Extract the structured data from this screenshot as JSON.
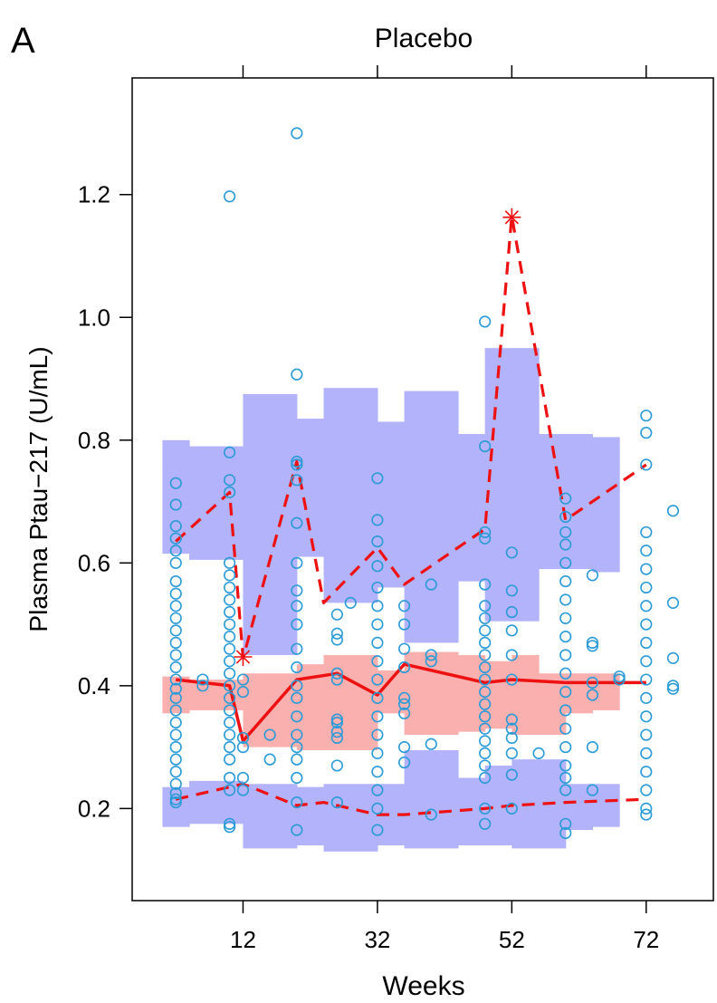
{
  "panel_label": "A",
  "chart_data": {
    "type": "scatter",
    "title": "Placebo",
    "xlabel": "Weeks",
    "ylabel": "Plasma Ptau−217 (U/mL)",
    "xlim": [
      -4.5,
      82
    ],
    "ylim": [
      0.05,
      1.39
    ],
    "x_ticks": [
      12,
      32,
      52,
      72
    ],
    "y_ticks": [
      0.2,
      0.4,
      0.6,
      0.8,
      1.0,
      1.2
    ],
    "y_tick_labels": [
      "0.2",
      "0.4",
      "0.6",
      "0.8",
      "1.0",
      "1.2"
    ],
    "grid": false,
    "legend": "none",
    "colors": {
      "points": "#2b9bd8",
      "prediction_interval": "#b3b3fb",
      "median_interval": "#fbb0b0",
      "overlap": "#c8a0d0",
      "observed_lines": "#ee1111",
      "outlier_marker": "#ee1111"
    },
    "prediction_bands": {
      "x_edges": [
        0,
        4,
        8,
        12,
        16,
        20,
        24,
        28,
        32,
        36,
        40,
        44,
        48,
        52,
        56,
        60,
        64,
        68
      ],
      "p5_low": [
        0.17,
        0.175,
        0.175,
        0.135,
        0.135,
        0.14,
        0.13,
        0.13,
        0.14,
        0.135,
        0.135,
        0.14,
        0.14,
        0.135,
        0.135,
        0.165,
        0.17
      ],
      "p5_high": [
        0.235,
        0.245,
        0.245,
        0.24,
        0.24,
        0.235,
        0.24,
        0.24,
        0.24,
        0.295,
        0.295,
        0.25,
        0.27,
        0.28,
        0.28,
        0.24,
        0.24
      ],
      "med_low": [
        0.355,
        0.36,
        0.36,
        0.3,
        0.3,
        0.295,
        0.295,
        0.295,
        0.355,
        0.32,
        0.32,
        0.325,
        0.33,
        0.32,
        0.32,
        0.355,
        0.36
      ],
      "med_high": [
        0.415,
        0.41,
        0.41,
        0.42,
        0.42,
        0.435,
        0.45,
        0.45,
        0.425,
        0.455,
        0.455,
        0.45,
        0.44,
        0.45,
        0.42,
        0.42,
        0.42
      ],
      "p95_low": [
        0.615,
        0.605,
        0.605,
        0.45,
        0.45,
        0.61,
        0.535,
        0.535,
        0.56,
        0.47,
        0.47,
        0.57,
        0.505,
        0.505,
        0.59,
        0.59,
        0.585
      ],
      "p95_high": [
        0.8,
        0.79,
        0.79,
        0.875,
        0.875,
        0.835,
        0.885,
        0.885,
        0.83,
        0.88,
        0.88,
        0.81,
        0.95,
        0.95,
        0.81,
        0.81,
        0.805
      ]
    },
    "series": [
      {
        "style": "solid",
        "x": [
          2,
          10,
          12,
          20,
          26,
          32,
          36,
          48,
          52,
          60,
          72
        ],
        "y": [
          0.41,
          0.4,
          0.31,
          0.41,
          0.42,
          0.385,
          0.435,
          0.405,
          0.41,
          0.405,
          0.405
        ]
      },
      {
        "style": "dashed",
        "x": [
          2,
          10,
          12,
          20,
          24,
          32,
          36,
          48,
          52,
          60,
          72
        ],
        "y": [
          0.635,
          0.715,
          0.445,
          0.765,
          0.535,
          0.625,
          0.565,
          0.655,
          1.165,
          0.67,
          0.76
        ]
      },
      {
        "style": "dashed",
        "x": [
          2,
          10,
          12,
          20,
          24,
          32,
          36,
          48,
          52,
          60,
          72
        ],
        "y": [
          0.215,
          0.235,
          0.24,
          0.205,
          0.21,
          0.19,
          0.19,
          0.2,
          0.205,
          0.21,
          0.215
        ]
      }
    ],
    "outlier_markers": [
      {
        "x": 12,
        "y": 0.447
      },
      {
        "x": 52,
        "y": 1.163
      }
    ],
    "observations": [
      {
        "x": 2,
        "y": [
          0.21,
          0.215,
          0.225,
          0.24,
          0.26,
          0.28,
          0.3,
          0.32,
          0.34,
          0.36,
          0.38,
          0.395,
          0.41,
          0.43,
          0.45,
          0.47,
          0.49,
          0.51,
          0.53,
          0.55,
          0.57,
          0.6,
          0.62,
          0.64,
          0.66,
          0.695,
          0.73
        ]
      },
      {
        "x": 6,
        "y": [
          0.4,
          0.41
        ]
      },
      {
        "x": 10,
        "y": [
          0.17,
          0.175,
          0.23,
          0.25,
          0.28,
          0.3,
          0.32,
          0.34,
          0.36,
          0.38,
          0.4,
          0.42,
          0.44,
          0.46,
          0.48,
          0.5,
          0.52,
          0.54,
          0.56,
          0.58,
          0.6,
          0.715,
          0.735,
          0.78,
          1.197
        ]
      },
      {
        "x": 12,
        "y": [
          0.23,
          0.25,
          0.3,
          0.315,
          0.39,
          0.41
        ]
      },
      {
        "x": 16,
        "y": [
          0.28,
          0.32
        ]
      },
      {
        "x": 20,
        "y": [
          0.165,
          0.21,
          0.25,
          0.28,
          0.3,
          0.32,
          0.35,
          0.38,
          0.4,
          0.43,
          0.46,
          0.5,
          0.53,
          0.555,
          0.6,
          0.665,
          0.735,
          0.76,
          0.765,
          0.907,
          1.3
        ]
      },
      {
        "x": 26,
        "y": [
          0.21,
          0.27,
          0.315,
          0.325,
          0.34,
          0.345,
          0.41,
          0.42,
          0.475,
          0.485,
          0.516
        ]
      },
      {
        "x": 28,
        "y": [
          0.535
        ]
      },
      {
        "x": 32,
        "y": [
          0.165,
          0.2,
          0.23,
          0.26,
          0.29,
          0.32,
          0.35,
          0.38,
          0.41,
          0.44,
          0.47,
          0.5,
          0.53,
          0.56,
          0.595,
          0.635,
          0.67,
          0.738
        ]
      },
      {
        "x": 36,
        "y": [
          0.275,
          0.3,
          0.355,
          0.37,
          0.38,
          0.43,
          0.46,
          0.5,
          0.53
        ]
      },
      {
        "x": 40,
        "y": [
          0.19,
          0.305,
          0.44,
          0.45,
          0.565
        ]
      },
      {
        "x": 48,
        "y": [
          0.175,
          0.2,
          0.25,
          0.27,
          0.29,
          0.31,
          0.33,
          0.35,
          0.37,
          0.39,
          0.41,
          0.43,
          0.45,
          0.47,
          0.49,
          0.51,
          0.53,
          0.565,
          0.64,
          0.65,
          0.79,
          0.993
        ]
      },
      {
        "x": 52,
        "y": [
          0.2,
          0.255,
          0.29,
          0.315,
          0.33,
          0.345,
          0.41,
          0.45,
          0.49,
          0.52,
          0.555,
          0.617
        ]
      },
      {
        "x": 56,
        "y": [
          0.29
        ]
      },
      {
        "x": 60,
        "y": [
          0.16,
          0.175,
          0.23,
          0.25,
          0.27,
          0.3,
          0.33,
          0.36,
          0.39,
          0.42,
          0.45,
          0.48,
          0.51,
          0.54,
          0.57,
          0.6,
          0.63,
          0.65,
          0.675,
          0.705
        ]
      },
      {
        "x": 64,
        "y": [
          0.23,
          0.3,
          0.385,
          0.405,
          0.465,
          0.47,
          0.58
        ]
      },
      {
        "x": 68,
        "y": [
          0.41,
          0.415
        ]
      },
      {
        "x": 72,
        "y": [
          0.19,
          0.2,
          0.23,
          0.26,
          0.29,
          0.32,
          0.35,
          0.38,
          0.41,
          0.44,
          0.47,
          0.5,
          0.53,
          0.56,
          0.59,
          0.62,
          0.65,
          0.76,
          0.812,
          0.84
        ]
      },
      {
        "x": 76,
        "y": [
          0.395,
          0.4,
          0.445,
          0.535,
          0.685
        ]
      }
    ]
  }
}
